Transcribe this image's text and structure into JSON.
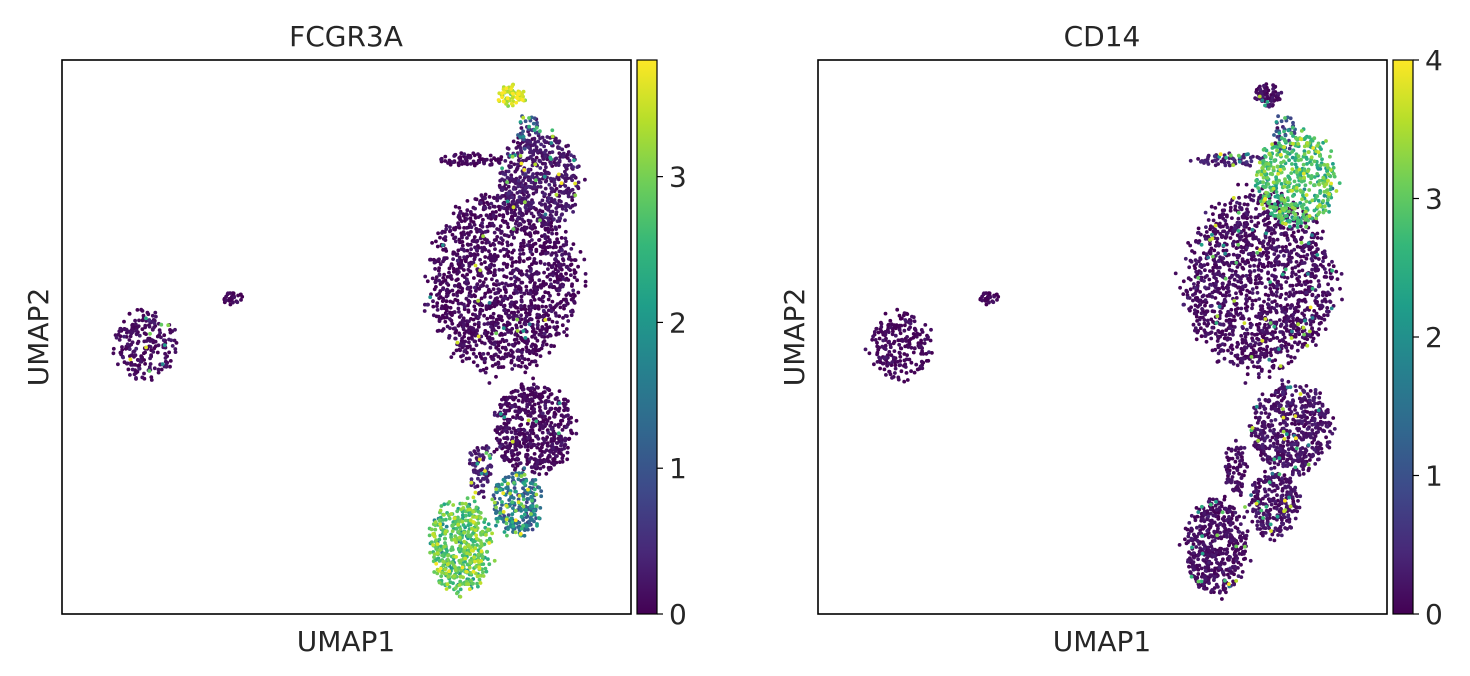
{
  "chart_data": [
    {
      "type": "scatter",
      "title": "FCGR3A",
      "xlabel": "UMAP1",
      "ylabel": "UMAP2",
      "ticks_on_axes": false,
      "colorbar": {
        "colormap": "viridis",
        "min": 0,
        "max": 3.8,
        "ticks": [
          0,
          1,
          2,
          3
        ]
      },
      "clusters": [
        {
          "cx": 0.145,
          "cy": 0.515,
          "rx": 0.055,
          "ry": 0.06,
          "n": 220,
          "expr": 0.1,
          "p_hi": 0.03
        },
        {
          "cx": 0.3,
          "cy": 0.43,
          "rx": 0.018,
          "ry": 0.012,
          "n": 30,
          "expr": 0.05,
          "p_hi": 0.0
        },
        {
          "cx": 0.775,
          "cy": 0.4,
          "rx": 0.13,
          "ry": 0.16,
          "n": 1500,
          "expr": 0.05,
          "p_hi": 0.01
        },
        {
          "cx": 0.84,
          "cy": 0.215,
          "rx": 0.07,
          "ry": 0.085,
          "n": 500,
          "expr": 0.2,
          "p_hi": 0.06
        },
        {
          "cx": 0.725,
          "cy": 0.18,
          "rx": 0.06,
          "ry": 0.012,
          "n": 70,
          "expr": 0.05,
          "p_hi": 0.0
        },
        {
          "cx": 0.79,
          "cy": 0.065,
          "rx": 0.025,
          "ry": 0.02,
          "n": 70,
          "expr": 3.5,
          "p_hi": 0.0
        },
        {
          "cx": 0.82,
          "cy": 0.13,
          "rx": 0.02,
          "ry": 0.035,
          "n": 40,
          "expr": 0.8,
          "p_hi": 0.3
        },
        {
          "cx": 0.83,
          "cy": 0.665,
          "rx": 0.07,
          "ry": 0.08,
          "n": 550,
          "expr": 0.05,
          "p_hi": 0.02
        },
        {
          "cx": 0.8,
          "cy": 0.8,
          "rx": 0.045,
          "ry": 0.06,
          "n": 260,
          "expr": 1.2,
          "p_hi": 0.3
        },
        {
          "cx": 0.7,
          "cy": 0.88,
          "rx": 0.055,
          "ry": 0.085,
          "n": 500,
          "expr": 2.8,
          "p_hi": 0.2
        },
        {
          "cx": 0.735,
          "cy": 0.74,
          "rx": 0.02,
          "ry": 0.05,
          "n": 80,
          "expr": 0.3,
          "p_hi": 0.1
        }
      ]
    },
    {
      "type": "scatter",
      "title": "CD14",
      "xlabel": "UMAP1",
      "ylabel": "UMAP2",
      "ticks_on_axes": false,
      "colorbar": {
        "colormap": "viridis",
        "min": 0,
        "max": 4,
        "ticks": [
          0,
          1,
          2,
          3,
          4
        ]
      },
      "clusters": [
        {
          "cx": 0.145,
          "cy": 0.515,
          "rx": 0.055,
          "ry": 0.06,
          "n": 220,
          "expr": 0.05,
          "p_hi": 0.0
        },
        {
          "cx": 0.3,
          "cy": 0.43,
          "rx": 0.018,
          "ry": 0.012,
          "n": 30,
          "expr": 0.05,
          "p_hi": 0.0
        },
        {
          "cx": 0.775,
          "cy": 0.4,
          "rx": 0.13,
          "ry": 0.16,
          "n": 1500,
          "expr": 0.1,
          "p_hi": 0.04
        },
        {
          "cx": 0.84,
          "cy": 0.215,
          "rx": 0.07,
          "ry": 0.085,
          "n": 500,
          "expr": 2.8,
          "p_hi": 0.15
        },
        {
          "cx": 0.725,
          "cy": 0.18,
          "rx": 0.06,
          "ry": 0.012,
          "n": 70,
          "expr": 0.3,
          "p_hi": 0.1
        },
        {
          "cx": 0.79,
          "cy": 0.065,
          "rx": 0.025,
          "ry": 0.02,
          "n": 70,
          "expr": 0.1,
          "p_hi": 0.05
        },
        {
          "cx": 0.82,
          "cy": 0.13,
          "rx": 0.02,
          "ry": 0.035,
          "n": 40,
          "expr": 0.8,
          "p_hi": 0.2
        },
        {
          "cx": 0.83,
          "cy": 0.665,
          "rx": 0.07,
          "ry": 0.08,
          "n": 550,
          "expr": 0.15,
          "p_hi": 0.05
        },
        {
          "cx": 0.8,
          "cy": 0.8,
          "rx": 0.045,
          "ry": 0.06,
          "n": 260,
          "expr": 0.15,
          "p_hi": 0.05
        },
        {
          "cx": 0.7,
          "cy": 0.88,
          "rx": 0.055,
          "ry": 0.085,
          "n": 500,
          "expr": 0.1,
          "p_hi": 0.04
        },
        {
          "cx": 0.735,
          "cy": 0.74,
          "rx": 0.02,
          "ry": 0.05,
          "n": 80,
          "expr": 0.1,
          "p_hi": 0.0
        }
      ]
    }
  ],
  "colors": {
    "viridis": [
      "#440154",
      "#482878",
      "#3e4989",
      "#31688e",
      "#26828e",
      "#1f9e89",
      "#35b779",
      "#6ece58",
      "#b5de2b",
      "#fde725"
    ],
    "axis": "#000000",
    "text": "#262626"
  }
}
